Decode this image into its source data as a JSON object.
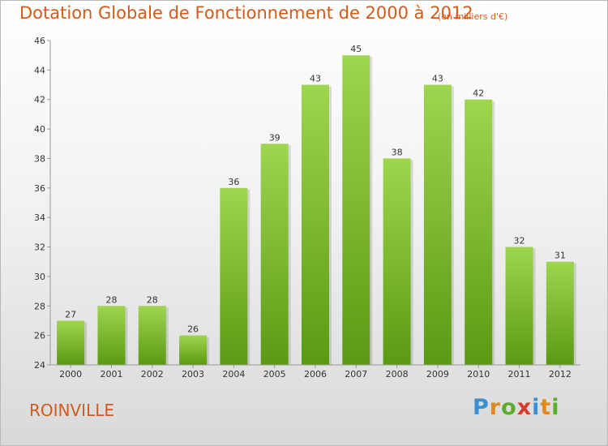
{
  "header": {
    "title": "Dotation Globale de Fonctionnement de 2000 à 2012",
    "subtitle": "(en milliers d'€)"
  },
  "footer": {
    "place": "ROINVILLE",
    "logo": [
      "P",
      "r",
      "o",
      "x",
      "i",
      "t",
      "i"
    ]
  },
  "colors": {
    "title": "#d35a1a",
    "bar_top": "#9ed64e",
    "bar_bottom": "#5a9a12",
    "logo": [
      "#3b8fd1",
      "#e08a1e",
      "#5aae2e",
      "#d63a2a",
      "#3b8fd1",
      "#e08a1e",
      "#5aae2e"
    ]
  },
  "chart_data": {
    "type": "bar",
    "categories": [
      "2000",
      "2001",
      "2002",
      "2003",
      "2004",
      "2005",
      "2006",
      "2007",
      "2008",
      "2009",
      "2010",
      "2011",
      "2012"
    ],
    "values": [
      27,
      28,
      28,
      26,
      36,
      39,
      43,
      45,
      38,
      43,
      42,
      32,
      31
    ],
    "ylim": [
      24,
      46
    ],
    "yticks": [
      "24",
      "26",
      "28",
      "30",
      "32",
      "34",
      "36",
      "38",
      "40",
      "42",
      "44",
      "46"
    ],
    "grid": false,
    "legend": "none"
  }
}
